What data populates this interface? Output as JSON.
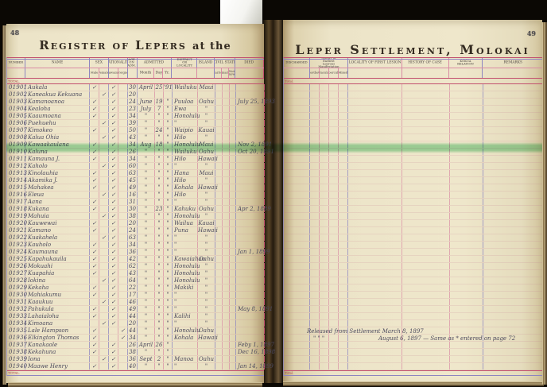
{
  "colors": {
    "background": "#0b0804",
    "paper": "#ece4c8",
    "rule_pink": "#d98ba4",
    "rule_crimson": "#c2506e",
    "rule_blue": "#8d85c0",
    "ink": "#4d4a5e",
    "ink_number": "#7c4a43",
    "highlight_green": "#6ecd8c"
  },
  "artifacts": {
    "bookmark_tab": "paper bookmark tab",
    "highlighted_row_number": "01910"
  },
  "left_page": {
    "page_number": "48",
    "title_main": "Register of Lepers",
    "title_suffix": "at the",
    "total_top": "TOTAL.",
    "total_bottom": "TOTAL.",
    "headers": {
      "number": "NUMBER",
      "name": "NAME",
      "sex_group": "SEX",
      "sex_male": "Male",
      "sex_female": "Female",
      "nat_group": "NATIONALITY",
      "nat_hawaiian": "Hawaiian",
      "nat_foreigner": "Foreigner",
      "age": "AGE ON ADM.",
      "admitted_group": "ADMITTED",
      "adm_month": "Month",
      "adm_day": "Day",
      "adm_year": "Yr.",
      "district": "DISTRICT OR LOCALITY",
      "island": "ISLAND",
      "civil_group": "CIVIL STATE",
      "civil_married": "Married",
      "civil_unmarried": "Unmarried",
      "civil_not_known": "Not Known",
      "died": "DIED"
    },
    "rows": [
      {
        "number": "01901",
        "name": "Aukala",
        "sexM": "✓",
        "sexF": "",
        "natH": "✓",
        "natF": "",
        "age": "30",
        "month": "April",
        "day": "25",
        "year": "'91",
        "district": "Wailuku",
        "island": "Maui",
        "died": ""
      },
      {
        "number": "01902",
        "name": "Kaneakua Kekuana",
        "sexM": "",
        "sexF": "✓",
        "natH": "✓",
        "natF": "",
        "age": "20",
        "month": "",
        "day": "",
        "year": "",
        "district": "",
        "island": "",
        "died": ""
      },
      {
        "number": "01903",
        "name": "Kamanoanoa",
        "sexM": "✓",
        "sexF": "",
        "natH": "✓",
        "natF": "",
        "age": "24",
        "month": "June",
        "day": "19",
        "year": "\"",
        "district": "Puuloa",
        "island": "Oahu",
        "died": "July 25, 1893"
      },
      {
        "number": "01904",
        "name": "Kealoha",
        "sexM": "✓",
        "sexF": "",
        "natH": "✓",
        "natF": "",
        "age": "23",
        "month": "July",
        "day": "7",
        "year": "\"",
        "district": "Ewa",
        "island": "\"",
        "died": ""
      },
      {
        "number": "01905",
        "name": "Kaaumoana",
        "sexM": "✓",
        "sexF": "",
        "natH": "✓",
        "natF": "",
        "age": "34",
        "month": "\"",
        "day": "\"",
        "year": "\"",
        "district": "Honolulu",
        "island": "\"",
        "died": ""
      },
      {
        "number": "01906",
        "name": "Puehuehu",
        "sexM": "",
        "sexF": "✓",
        "natH": "✓",
        "natF": "",
        "age": "39",
        "month": "\"",
        "day": "\"",
        "year": "\"",
        "district": "\"",
        "island": "\"",
        "died": ""
      },
      {
        "number": "01907",
        "name": "Kimokeo",
        "sexM": "✓",
        "sexF": "",
        "natH": "✓",
        "natF": "",
        "age": "50",
        "month": "\"",
        "day": "24",
        "year": "\"",
        "district": "Waipio",
        "island": "Kauai",
        "died": ""
      },
      {
        "number": "01908",
        "name": "Kalua Ohia",
        "sexM": "",
        "sexF": "✓",
        "natH": "✓",
        "natF": "",
        "age": "43",
        "month": "\"",
        "day": "\"",
        "year": "\"",
        "district": "Hilo",
        "island": "\"",
        "died": ""
      },
      {
        "number": "01909",
        "name": "Kawaakaulana",
        "sexM": "✓",
        "sexF": "",
        "natH": "✓",
        "natF": "",
        "age": "34",
        "month": "Aug",
        "day": "18",
        "year": "\"",
        "district": "Honolulu",
        "island": "Maui",
        "died": "Nov 2, 1891"
      },
      {
        "number": "01910",
        "name": "Kaluna",
        "sexM": "✓",
        "sexF": "",
        "natH": "✓",
        "natF": "",
        "age": "26",
        "month": "\"",
        "day": "\"",
        "year": "\"",
        "district": "Wailuku",
        "island": "Oahu",
        "died": "Oct 20, 1891"
      },
      {
        "number": "01911",
        "name": "Kamauna J.",
        "sexM": "✓",
        "sexF": "",
        "natH": "✓",
        "natF": "",
        "age": "34",
        "month": "\"",
        "day": "\"",
        "year": "\"",
        "district": "Hilo",
        "island": "Hawaii",
        "died": ""
      },
      {
        "number": "01912",
        "name": "Kaholo",
        "sexM": "",
        "sexF": "✓",
        "natH": "✓",
        "natF": "",
        "age": "60",
        "month": "\"",
        "day": "\"",
        "year": "\"",
        "district": "\"",
        "island": "\"",
        "died": ""
      },
      {
        "number": "01913",
        "name": "Kinolauhia",
        "sexM": "✓",
        "sexF": "",
        "natH": "✓",
        "natF": "",
        "age": "63",
        "month": "\"",
        "day": "\"",
        "year": "\"",
        "district": "Hana",
        "island": "Maui",
        "died": ""
      },
      {
        "number": "01914",
        "name": "Akamika J.",
        "sexM": "✓",
        "sexF": "",
        "natH": "✓",
        "natF": "",
        "age": "45",
        "month": "\"",
        "day": "\"",
        "year": "\"",
        "district": "Hilo",
        "island": "\"",
        "died": ""
      },
      {
        "number": "01915",
        "name": "Mahakea",
        "sexM": "✓",
        "sexF": "",
        "natH": "✓",
        "natF": "",
        "age": "49",
        "month": "\"",
        "day": "\"",
        "year": "\"",
        "district": "Kohala",
        "island": "Hawaii",
        "died": ""
      },
      {
        "number": "01916",
        "name": "Eleua",
        "sexM": "",
        "sexF": "✓",
        "natH": "✓",
        "natF": "",
        "age": "16",
        "month": "\"",
        "day": "\"",
        "year": "\"",
        "district": "Hilo",
        "island": "\"",
        "died": ""
      },
      {
        "number": "01917",
        "name": "Aana",
        "sexM": "✓",
        "sexF": "",
        "natH": "✓",
        "natF": "",
        "age": "31",
        "month": "\"",
        "day": "\"",
        "year": "\"",
        "district": "\"",
        "island": "\"",
        "died": ""
      },
      {
        "number": "01918",
        "name": "Kukana",
        "sexM": "✓",
        "sexF": "",
        "natH": "✓",
        "natF": "",
        "age": "30",
        "month": "\"",
        "day": "23",
        "year": "\"",
        "district": "Kahuku",
        "island": "Oahu",
        "died": "Apr 2, 1889"
      },
      {
        "number": "01919",
        "name": "Mahuia",
        "sexM": "",
        "sexF": "✓",
        "natH": "✓",
        "natF": "",
        "age": "38",
        "month": "\"",
        "day": "\"",
        "year": "\"",
        "district": "Honolulu",
        "island": "\"",
        "died": ""
      },
      {
        "number": "01920",
        "name": "Kauwewai",
        "sexM": "✓",
        "sexF": "",
        "natH": "✓",
        "natF": "",
        "age": "20",
        "month": "\"",
        "day": "\"",
        "year": "\"",
        "district": "Wailua",
        "island": "Kauai",
        "died": ""
      },
      {
        "number": "01921",
        "name": "Kamano",
        "sexM": "✓",
        "sexF": "",
        "natH": "✓",
        "natF": "",
        "age": "24",
        "month": "\"",
        "day": "\"",
        "year": "\"",
        "district": "Puna",
        "island": "Hawaii",
        "died": ""
      },
      {
        "number": "01922",
        "name": "Kuakahela",
        "sexM": "",
        "sexF": "✓",
        "natH": "✓",
        "natF": "",
        "age": "63",
        "month": "\"",
        "day": "\"",
        "year": "\"",
        "district": "\"",
        "island": "\"",
        "died": ""
      },
      {
        "number": "01923",
        "name": "Kauholo",
        "sexM": "✓",
        "sexF": "",
        "natH": "✓",
        "natF": "",
        "age": "34",
        "month": "\"",
        "day": "\"",
        "year": "\"",
        "district": "\"",
        "island": "\"",
        "died": ""
      },
      {
        "number": "01924",
        "name": "Kaumauna",
        "sexM": "✓",
        "sexF": "",
        "natH": "✓",
        "natF": "",
        "age": "36",
        "month": "\"",
        "day": "\"",
        "year": "\"",
        "district": "\"",
        "island": "\"",
        "died": "Jan 1, 1899"
      },
      {
        "number": "01925",
        "name": "Kapahukauila",
        "sexM": "✓",
        "sexF": "",
        "natH": "✓",
        "natF": "",
        "age": "42",
        "month": "\"",
        "day": "\"",
        "year": "\"",
        "district": "Kawaiahao",
        "island": "Oahu",
        "died": ""
      },
      {
        "number": "01926",
        "name": "Mokuahi",
        "sexM": "✓",
        "sexF": "",
        "natH": "✓",
        "natF": "",
        "age": "62",
        "month": "\"",
        "day": "\"",
        "year": "\"",
        "district": "Honolulu",
        "island": "\"",
        "died": ""
      },
      {
        "number": "01927",
        "name": "Kuapahia",
        "sexM": "✓",
        "sexF": "",
        "natH": "✓",
        "natF": "",
        "age": "43",
        "month": "\"",
        "day": "\"",
        "year": "\"",
        "district": "Honolulu",
        "island": "\"",
        "died": ""
      },
      {
        "number": "01928",
        "name": "Iokina",
        "sexM": "",
        "sexF": "✓",
        "natH": "✓",
        "natF": "",
        "age": "64",
        "month": "\"",
        "day": "\"",
        "year": "\"",
        "district": "Honolulu",
        "island": "\"",
        "died": ""
      },
      {
        "number": "01929",
        "name": "Kekaha",
        "sexM": "✓",
        "sexF": "",
        "natH": "✓",
        "natF": "",
        "age": "22",
        "month": "\"",
        "day": "\"",
        "year": "\"",
        "district": "Makiki",
        "island": "\"",
        "died": ""
      },
      {
        "number": "01930",
        "name": "Mahiakumu",
        "sexM": "✓",
        "sexF": "",
        "natH": "✓",
        "natF": "",
        "age": "17",
        "month": "\"",
        "day": "\"",
        "year": "\"",
        "district": "\"",
        "island": "\"",
        "died": ""
      },
      {
        "number": "01931",
        "name": "Kaaukuu",
        "sexM": "",
        "sexF": "✓",
        "natH": "✓",
        "natF": "",
        "age": "46",
        "month": "\"",
        "day": "\"",
        "year": "\"",
        "district": "\"",
        "island": "\"",
        "died": ""
      },
      {
        "number": "01932",
        "name": "Pahukula",
        "sexM": "✓",
        "sexF": "",
        "natH": "✓",
        "natF": "",
        "age": "49",
        "month": "\"",
        "day": "\"",
        "year": "\"",
        "district": "\"",
        "island": "\"",
        "died": "May 8, 1891"
      },
      {
        "number": "01933",
        "name": "Lahaialoha",
        "sexM": "✓",
        "sexF": "",
        "natH": "✓",
        "natF": "",
        "age": "44",
        "month": "\"",
        "day": "\"",
        "year": "\"",
        "district": "Kalihi",
        "island": "\"",
        "died": ""
      },
      {
        "number": "01934",
        "name": "Kimoana",
        "sexM": "",
        "sexF": "✓",
        "natH": "✓",
        "natF": "",
        "age": "20",
        "month": "\"",
        "day": "\"",
        "year": "\"",
        "district": "\"",
        "island": "\"",
        "died": ""
      },
      {
        "number": "01935",
        "name": "Lale Hampson",
        "sexM": "✓",
        "sexF": "",
        "natH": "",
        "natF": "✓",
        "age": "44",
        "month": "\"",
        "day": "\"",
        "year": "\"",
        "district": "Honolulu",
        "island": "Oahu",
        "died": ""
      },
      {
        "number": "01936",
        "name": "Elkington Thomas",
        "sexM": "✓",
        "sexF": "",
        "natH": "",
        "natF": "✓",
        "age": "34",
        "month": "\"",
        "day": "\"",
        "year": "\"",
        "district": "Kohala",
        "island": "Hawaii",
        "died": ""
      },
      {
        "number": "01937",
        "name": "Kanakaole",
        "sexM": "✓",
        "sexF": "",
        "natH": "✓",
        "natF": "",
        "age": "26",
        "month": "April",
        "day": "26",
        "year": "\"",
        "district": "",
        "island": "",
        "died": "Feby 1, 1897"
      },
      {
        "number": "01938",
        "name": "Kekahuna",
        "sexM": "✓",
        "sexF": "",
        "natH": "✓",
        "natF": "",
        "age": "38",
        "month": "\"",
        "day": "\"",
        "year": "\"",
        "district": "",
        "island": "",
        "died": "Dec 16, 1898"
      },
      {
        "number": "01939",
        "name": "Iona",
        "sexM": "",
        "sexF": "✓",
        "natH": "✓",
        "natF": "",
        "age": "36",
        "month": "Sept",
        "day": "2",
        "year": "\"",
        "district": "Manoa",
        "island": "Oahu",
        "died": ""
      },
      {
        "number": "01940",
        "name": "Maawe Henry",
        "sexM": "✓",
        "sexF": "",
        "natH": "✓",
        "natF": "",
        "age": "40",
        "month": "\"",
        "day": "\"",
        "year": "\"",
        "district": "\"",
        "island": "\"",
        "died": "Jan 14, 1899"
      }
    ]
  },
  "right_page": {
    "page_number": "49",
    "title": "Leper Settlement, Molokai",
    "total_top": "Total.",
    "total_bottom": "Total.",
    "headers": {
      "discharged": "DISCHARGED",
      "manifestation_group": "Nature of Earliest Leprous Manifestation",
      "man_anesthetic": "Anesthetic",
      "man_macular": "Macular",
      "man_tubercular": "Tubercular",
      "man_mixed": "Mixed",
      "locality_first_lesion": "LOCALITY OF FIRST LESION",
      "history_of_case": "HISTORY OF CASE",
      "kokua_relation": "KOKUA RELATION",
      "remarks": "REMARKS"
    },
    "notes": {
      "note1": "Released from Settlement March 8, 1897",
      "note2_ditto": "\"        \"        \"",
      "note2_text": "August 6, 1897 — Same as * entered on page 72"
    }
  }
}
